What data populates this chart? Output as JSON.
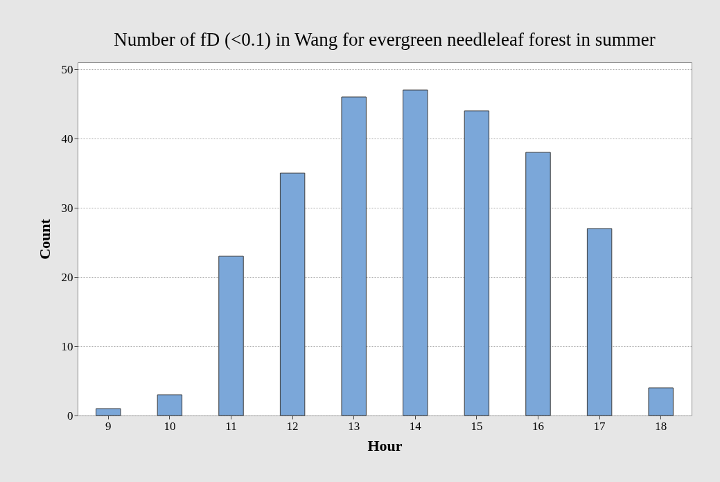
{
  "chart_data": {
    "type": "bar",
    "title": "Number of fD (<0.1) in Wang for evergreen needleleaf forest in summer",
    "xlabel": "Hour",
    "ylabel": "Count",
    "categories": [
      "9",
      "10",
      "11",
      "12",
      "13",
      "14",
      "15",
      "16",
      "17",
      "18"
    ],
    "values": [
      1,
      3,
      23,
      35,
      46,
      47,
      44,
      38,
      27,
      4
    ],
    "color": "#7ba7d9",
    "ylim": [
      0,
      51
    ],
    "yticks": [
      0,
      10,
      20,
      30,
      40,
      50
    ],
    "grid": "y"
  }
}
